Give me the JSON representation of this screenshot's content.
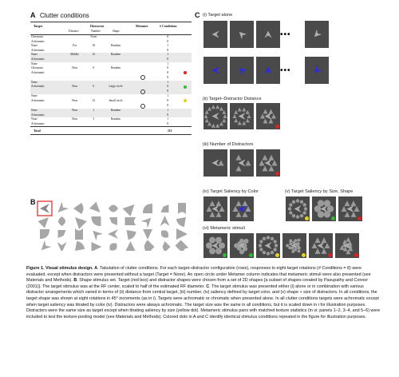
{
  "panel_a": {
    "letter": "A",
    "title": "Clutter conditions",
    "headers": {
      "target": "Target",
      "distractor": "Distractor",
      "metamer": "Metamer",
      "conditions": "# Conditions"
    },
    "subheaders": {
      "distance": "Distance",
      "number": "Number",
      "shape": "Shape"
    },
    "rows": [
      {
        "target": "Chromatic",
        "distance": "",
        "number": "None",
        "shape": "",
        "metamer": "",
        "cond": "8",
        "dot": "",
        "shade": false
      },
      {
        "target": "Achromatic",
        "distance": "",
        "number": "",
        "shape": "",
        "metamer": "",
        "cond": "8",
        "dot": "",
        "shade": false
      },
      {
        "target": "None",
        "distance": "Far",
        "number": "18",
        "shape": "Random",
        "metamer": "",
        "cond": "1",
        "dot": "",
        "shade": false
      },
      {
        "target": "Achromatic",
        "distance": "",
        "number": "",
        "shape": "",
        "metamer": "",
        "cond": "8",
        "dot": "",
        "shade": false
      },
      {
        "target": "None",
        "distance": "Middle",
        "number": "12",
        "shape": "Random",
        "metamer": "",
        "cond": "1",
        "dot": "",
        "shade": true
      },
      {
        "target": "Achromatic",
        "distance": "",
        "number": "",
        "shape": "",
        "metamer": "",
        "cond": "8",
        "dot": "",
        "shade": true
      },
      {
        "target": "None",
        "distance": "",
        "number": "",
        "shape": "",
        "metamer": "",
        "cond": "1",
        "dot": "",
        "shade": false
      },
      {
        "target": "Chromatic",
        "distance": "Near",
        "number": "6",
        "shape": "Random",
        "metamer": "",
        "cond": "8",
        "dot": "",
        "shade": false
      },
      {
        "target": "Achromatic",
        "distance": "",
        "number": "",
        "shape": "",
        "metamer": "",
        "cond": "8",
        "dot": "red",
        "shade": false
      },
      {
        "target": "",
        "distance": "",
        "number": "",
        "shape": "",
        "metamer": "circle",
        "cond": "8",
        "dot": "",
        "shade": false
      },
      {
        "target": "None",
        "distance": "",
        "number": "",
        "shape": "",
        "metamer": "",
        "cond": "1",
        "dot": "",
        "shade": true
      },
      {
        "target": "Achromatic",
        "distance": "Near",
        "number": "6",
        "shape": "Large circle",
        "metamer": "",
        "cond": "8",
        "dot": "green",
        "shade": true
      },
      {
        "target": "",
        "distance": "",
        "number": "",
        "shape": "",
        "metamer": "circle",
        "cond": "8",
        "dot": "",
        "shade": true
      },
      {
        "target": "None",
        "distance": "",
        "number": "",
        "shape": "",
        "metamer": "",
        "cond": "1",
        "dot": "",
        "shade": false
      },
      {
        "target": "Achromatic",
        "distance": "Near",
        "number": "12",
        "shape": "Small circle",
        "metamer": "",
        "cond": "8",
        "dot": "yellow",
        "shade": false
      },
      {
        "target": "",
        "distance": "",
        "number": "",
        "shape": "",
        "metamer": "circle",
        "cond": "8",
        "dot": "",
        "shade": false
      },
      {
        "target": "None",
        "distance": "Near",
        "number": "1",
        "shape": "Random",
        "metamer": "",
        "cond": "1",
        "dot": "",
        "shade": true
      },
      {
        "target": "Achromatic",
        "distance": "",
        "number": "",
        "shape": "",
        "metamer": "",
        "cond": "8",
        "dot": "",
        "shade": true
      },
      {
        "target": "None",
        "distance": "Near",
        "number": "3",
        "shape": "Random",
        "metamer": "",
        "cond": "1",
        "dot": "",
        "shade": false
      },
      {
        "target": "Achromatic",
        "distance": "",
        "number": "",
        "shape": "",
        "metamer": "",
        "cond": "8",
        "dot": "",
        "shade": false
      }
    ],
    "total_label": "Total",
    "total_value": "111"
  },
  "panel_b": {
    "letter": "B"
  },
  "panel_c": {
    "letter": "C",
    "sub_i": "(i) Target alone",
    "sub_ii": "(ii) Target–Distractor Distance",
    "sub_iii": "(iii) Number of Distractors",
    "sub_iv": "(iv) Target Saliency by Color",
    "sub_v": "(v) Target Saliency by Size, Shape",
    "sub_vi": "(vi) Metameric stimuli",
    "ellipsis": "•••"
  },
  "caption": {
    "figure_label": "Figure 1. Visual stimulus design.",
    "a_label": "A",
    "a_text": ". Tabulation of clutter conditions. For each target–distractor configuration (rows), responses to eight target rotations (# Conditions = 8) were evaluated, except when distractors were presented without a target (Target = None). An open circle under Metamer column indicates that metameric stimuli were also presented (see Materials and Methods).",
    "b_label": "B",
    "b_text": ". Shape stimulus set. Target (red box) and distractor shapes were chosen from a set of 2D shapes [a subset of shapes created by Pasupathy and Connor (2001)]. The target stimulus was at the RF center, scaled to half of the estimated RF diameter.",
    "c_label": "C",
    "c_text": ". The target stimulus was presented either (i) alone or in combination with various distractor arrangements which varied in terms of (ii) distance from central target, (iii) number, (iv) saliency defined by target color, and (v) shape + size of distractors. In all conditions, the target shape was shown at eight rotations in 45° increments (as in i). Targets were achromatic or chromatic when presented alone. In all clutter conditions targets were achromatic except when target saliency was titrated by color (iv). Distractors were always achromatic. The target size was the same in all conditions, but it is scaled down in i for illustration purposes. Distractors were the same size as target except when titrating saliency by size (yellow dot). Metameric stimulus pairs with matched texture statistics (in vi; panels 1–2, 3–4, and 5–6) were included to test the texture-pooling model (see Materials and Methods). Colored dots in A and C identify identical stimulus conditions repeated in the figure for illustration purposes."
  },
  "colors": {
    "red": "#e02020",
    "green": "#2fb82f",
    "yellow": "#e6d21e",
    "blue": "#2a2ae8",
    "thumb_bg": "#4a4a4a",
    "shape_gray": "#a7a7a7"
  }
}
